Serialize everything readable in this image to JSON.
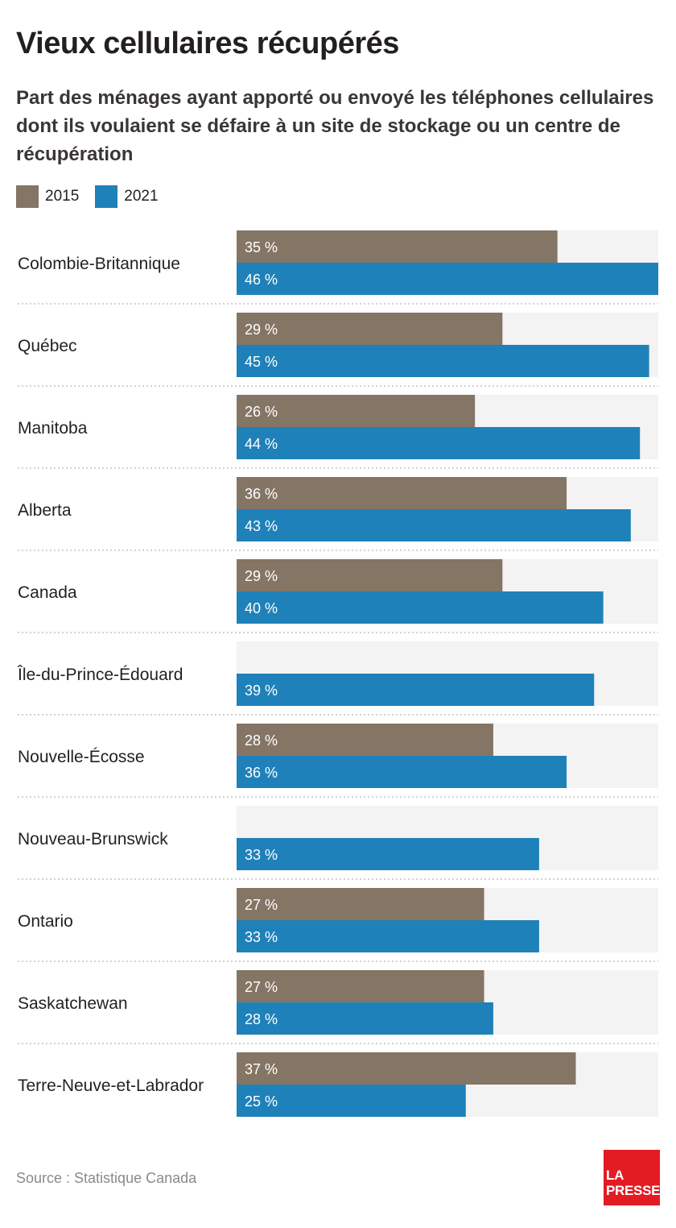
{
  "title": "Vieux cellulaires récupérés",
  "subtitle": "Part des ménages ayant apporté ou envoyé les téléphones cellulaires dont ils voulaient se défaire à un site de stockage ou un centre de récupération",
  "legend": [
    {
      "label": "2015",
      "color": "#857565"
    },
    {
      "label": "2021",
      "color": "#1f81b9"
    }
  ],
  "chart_data": {
    "type": "bar",
    "orientation": "horizontal",
    "categories": [
      "Colombie-Britannique",
      "Québec",
      "Manitoba",
      "Alberta",
      "Canada",
      "Île-du-Prince-Édouard",
      "Nouvelle-Écosse",
      "Nouveau-Brunswick",
      "Ontario",
      "Saskatchewan",
      "Terre-Neuve-et-Labrador"
    ],
    "series": [
      {
        "name": "2015",
        "color": "#857565",
        "values": [
          35,
          29,
          26,
          36,
          29,
          null,
          28,
          null,
          27,
          27,
          37
        ]
      },
      {
        "name": "2021",
        "color": "#1f81b9",
        "values": [
          46,
          45,
          44,
          43,
          40,
          39,
          36,
          33,
          33,
          28,
          25
        ]
      }
    ],
    "value_suffix": " %",
    "xlim": [
      0,
      46
    ],
    "track_color": "#f3f3f3",
    "grid": false
  },
  "source": "Source : Statistique Canada",
  "logo": {
    "line1": "LA",
    "line2": "PRESSE",
    "color": "#e31b23"
  }
}
